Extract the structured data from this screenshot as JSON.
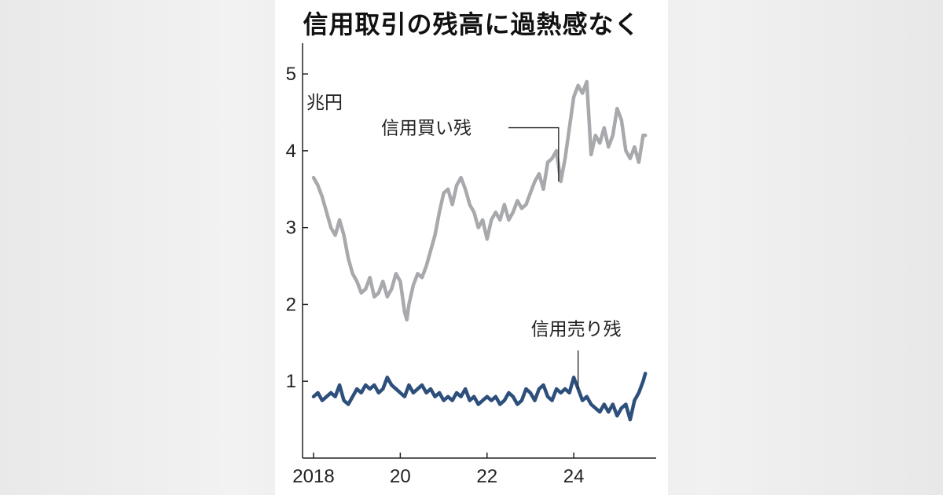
{
  "chart_data": {
    "type": "line",
    "title": "信用取引の残高に過熱感なく",
    "ylabel": "兆円",
    "xlabel": "",
    "ylim": [
      0,
      5.4
    ],
    "xlim": [
      2018,
      2025.9
    ],
    "y_ticks": [
      "1",
      "2",
      "3",
      "4",
      "5"
    ],
    "x_ticks": [
      {
        "value": 2018,
        "label": "2018"
      },
      {
        "value": 2020,
        "label": "20"
      },
      {
        "value": 2022,
        "label": "22"
      },
      {
        "value": 2024,
        "label": "24"
      }
    ],
    "series": [
      {
        "name": "信用買い残",
        "color": "#a7a9ac",
        "x": [
          2018.0,
          2018.1,
          2018.2,
          2018.3,
          2018.4,
          2018.5,
          2018.6,
          2018.7,
          2018.8,
          2018.9,
          2019.0,
          2019.1,
          2019.2,
          2019.3,
          2019.4,
          2019.5,
          2019.6,
          2019.7,
          2019.8,
          2019.9,
          2020.0,
          2020.1,
          2020.15,
          2020.2,
          2020.3,
          2020.4,
          2020.5,
          2020.6,
          2020.7,
          2020.8,
          2020.9,
          2021.0,
          2021.1,
          2021.2,
          2021.3,
          2021.4,
          2021.5,
          2021.6,
          2021.7,
          2021.8,
          2021.9,
          2022.0,
          2022.1,
          2022.2,
          2022.3,
          2022.4,
          2022.5,
          2022.6,
          2022.7,
          2022.8,
          2022.9,
          2023.0,
          2023.1,
          2023.2,
          2023.3,
          2023.4,
          2023.5,
          2023.6,
          2023.7,
          2023.8,
          2023.9,
          2024.0,
          2024.1,
          2024.2,
          2024.3,
          2024.4,
          2024.5,
          2024.6,
          2024.7,
          2024.8,
          2024.9,
          2025.0,
          2025.1,
          2025.2,
          2025.3,
          2025.4,
          2025.5,
          2025.6,
          2025.65
        ],
        "values": [
          3.65,
          3.55,
          3.4,
          3.2,
          3.0,
          2.9,
          3.1,
          2.9,
          2.6,
          2.4,
          2.3,
          2.15,
          2.2,
          2.35,
          2.1,
          2.15,
          2.3,
          2.1,
          2.2,
          2.4,
          2.3,
          1.9,
          1.8,
          2.0,
          2.25,
          2.4,
          2.35,
          2.5,
          2.7,
          2.9,
          3.2,
          3.45,
          3.5,
          3.3,
          3.55,
          3.65,
          3.5,
          3.3,
          3.2,
          3.0,
          3.1,
          2.85,
          3.1,
          3.2,
          3.1,
          3.3,
          3.1,
          3.2,
          3.35,
          3.25,
          3.3,
          3.45,
          3.6,
          3.7,
          3.5,
          3.85,
          3.9,
          4.0,
          3.6,
          3.9,
          4.3,
          4.7,
          4.85,
          4.75,
          4.9,
          3.95,
          4.2,
          4.1,
          4.3,
          4.05,
          4.2,
          4.55,
          4.4,
          4.0,
          3.9,
          4.05,
          3.85,
          4.2,
          4.2
        ]
      },
      {
        "name": "信用売り残",
        "color": "#2d4f7c",
        "x": [
          2018.0,
          2018.1,
          2018.2,
          2018.3,
          2018.4,
          2018.5,
          2018.6,
          2018.7,
          2018.8,
          2018.9,
          2019.0,
          2019.1,
          2019.2,
          2019.3,
          2019.4,
          2019.5,
          2019.6,
          2019.7,
          2019.8,
          2019.9,
          2020.0,
          2020.1,
          2020.2,
          2020.3,
          2020.4,
          2020.5,
          2020.6,
          2020.7,
          2020.8,
          2020.9,
          2021.0,
          2021.1,
          2021.2,
          2021.3,
          2021.4,
          2021.5,
          2021.6,
          2021.7,
          2021.8,
          2021.9,
          2022.0,
          2022.1,
          2022.2,
          2022.3,
          2022.4,
          2022.5,
          2022.6,
          2022.7,
          2022.8,
          2022.9,
          2023.0,
          2023.1,
          2023.2,
          2023.3,
          2023.4,
          2023.5,
          2023.6,
          2023.7,
          2023.8,
          2023.9,
          2024.0,
          2024.1,
          2024.2,
          2024.3,
          2024.4,
          2024.5,
          2024.6,
          2024.7,
          2024.8,
          2024.9,
          2025.0,
          2025.1,
          2025.2,
          2025.3,
          2025.4,
          2025.5,
          2025.6,
          2025.65
        ],
        "values": [
          0.8,
          0.85,
          0.75,
          0.8,
          0.85,
          0.8,
          0.95,
          0.75,
          0.7,
          0.8,
          0.9,
          0.85,
          0.95,
          0.9,
          0.95,
          0.85,
          0.9,
          1.05,
          0.95,
          0.9,
          0.85,
          0.8,
          0.95,
          0.85,
          0.9,
          0.95,
          0.85,
          0.9,
          0.8,
          0.85,
          0.75,
          0.8,
          0.75,
          0.85,
          0.8,
          0.9,
          0.75,
          0.8,
          0.7,
          0.75,
          0.8,
          0.75,
          0.8,
          0.7,
          0.75,
          0.85,
          0.8,
          0.7,
          0.75,
          0.9,
          0.85,
          0.75,
          0.9,
          0.95,
          0.8,
          0.75,
          0.9,
          0.85,
          0.9,
          0.85,
          1.05,
          0.9,
          0.75,
          0.8,
          0.7,
          0.65,
          0.6,
          0.7,
          0.6,
          0.7,
          0.55,
          0.65,
          0.7,
          0.5,
          0.75,
          0.85,
          1.0,
          1.1
        ]
      }
    ],
    "annotations": [
      {
        "text": "信用買い残",
        "series": "信用買い残",
        "x": 2023.65
      },
      {
        "text": "信用売り残",
        "series": "信用売り残",
        "x": 2024.1
      }
    ]
  }
}
